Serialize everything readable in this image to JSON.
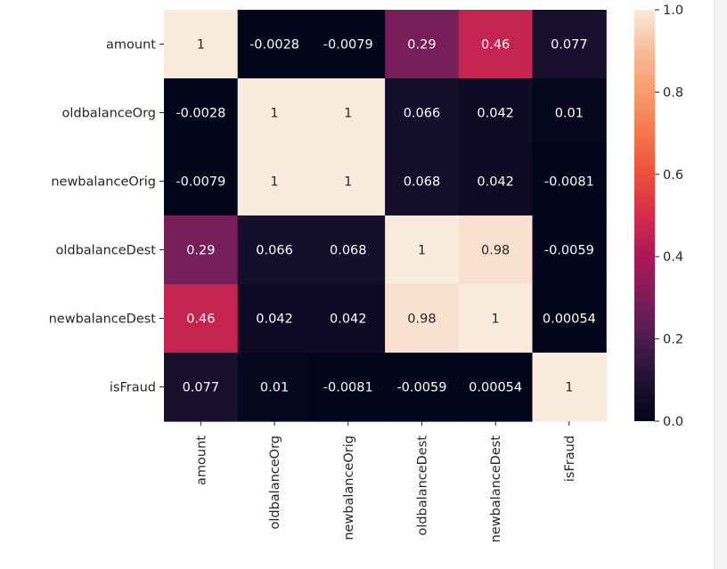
{
  "chart_data": {
    "type": "heatmap",
    "title": "",
    "row_labels": [
      "amount",
      "oldbalanceOrg",
      "newbalanceOrig",
      "oldbalanceDest",
      "newbalanceDest",
      "isFraud"
    ],
    "col_labels": [
      "amount",
      "oldbalanceOrg",
      "newbalanceOrig",
      "oldbalanceDest",
      "newbalanceDest",
      "isFraud"
    ],
    "values": [
      [
        1,
        -0.0028,
        -0.0079,
        0.29,
        0.46,
        0.077
      ],
      [
        -0.0028,
        1,
        1,
        0.066,
        0.042,
        0.01
      ],
      [
        -0.0079,
        1,
        1,
        0.068,
        0.042,
        -0.0081
      ],
      [
        0.29,
        0.066,
        0.068,
        1,
        0.98,
        -0.0059
      ],
      [
        0.46,
        0.042,
        0.042,
        0.98,
        1,
        0.00054
      ],
      [
        0.077,
        0.01,
        -0.0081,
        -0.0059,
        0.00054,
        1
      ]
    ],
    "cell_labels": [
      [
        "1",
        "-0.0028",
        "-0.0079",
        "0.29",
        "0.46",
        "0.077"
      ],
      [
        "-0.0028",
        "1",
        "1",
        "0.066",
        "0.042",
        "0.01"
      ],
      [
        "-0.0079",
        "1",
        "1",
        "0.068",
        "0.042",
        "-0.0081"
      ],
      [
        "0.29",
        "0.066",
        "0.068",
        "1",
        "0.98",
        "-0.0059"
      ],
      [
        "0.46",
        "0.042",
        "0.042",
        "0.98",
        "1",
        "0.00054"
      ],
      [
        "0.077",
        "0.01",
        "-0.0081",
        "-0.0059",
        "0.00054",
        "1"
      ]
    ],
    "colorbar": {
      "range": [
        0.0,
        1.0
      ],
      "ticks": [
        0.0,
        0.2,
        0.4,
        0.6,
        0.8,
        1.0
      ],
      "tick_labels": [
        "0.0",
        "0.2",
        "0.4",
        "0.6",
        "0.8",
        "1.0"
      ]
    },
    "colormap": "rocket",
    "colormap_stops": [
      "#03051a",
      "#1f1335",
      "#4c1d4b",
      "#7c1d5a",
      "#ab1859",
      "#d62b4a",
      "#ee4f3d",
      "#f5774a",
      "#f89a6c",
      "#f8bb97",
      "#faebdd"
    ],
    "annotation_colors": {
      "light_text": "#ffffff",
      "dark_text": "#262626"
    }
  }
}
